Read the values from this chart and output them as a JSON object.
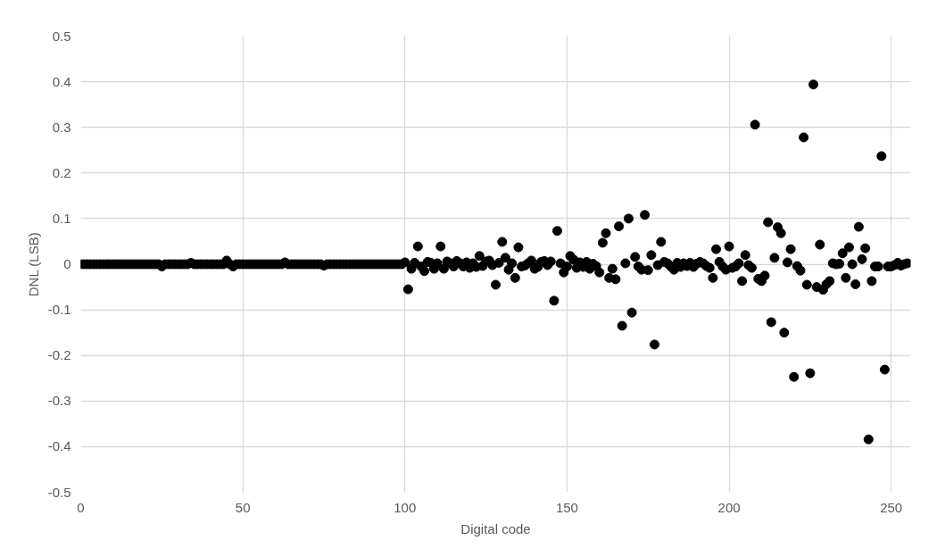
{
  "chart_data": {
    "type": "scatter",
    "xlabel": "Digital code",
    "ylabel": "DNL (LSB)",
    "xlim": [
      0,
      256
    ],
    "ylim": [
      -0.5,
      0.5
    ],
    "xticks": [
      0,
      50,
      100,
      150,
      200,
      250
    ],
    "yticks": [
      -0.5,
      -0.4,
      -0.3,
      -0.2,
      -0.1,
      0,
      0.1,
      0.2,
      0.3,
      0.4,
      0.5
    ],
    "grid": true,
    "marker": "circle",
    "series": [
      {
        "color": "#000000",
        "x": [
          0,
          1,
          2,
          3,
          4,
          5,
          6,
          7,
          8,
          9,
          10,
          11,
          12,
          13,
          14,
          15,
          16,
          17,
          18,
          19,
          20,
          21,
          22,
          23,
          24,
          25,
          26,
          27,
          28,
          29,
          30,
          31,
          32,
          33,
          34,
          35,
          36,
          37,
          38,
          39,
          40,
          41,
          42,
          43,
          44,
          45,
          46,
          47,
          48,
          49,
          50,
          51,
          52,
          53,
          54,
          55,
          56,
          57,
          58,
          59,
          60,
          61,
          62,
          63,
          64,
          65,
          66,
          67,
          68,
          69,
          70,
          71,
          72,
          73,
          74,
          75,
          76,
          77,
          78,
          79,
          80,
          81,
          82,
          83,
          84,
          85,
          86,
          87,
          88,
          89,
          90,
          91,
          92,
          93,
          94,
          95,
          96,
          97,
          98,
          99,
          100,
          101,
          102,
          103,
          104,
          105,
          106,
          107,
          108,
          109,
          110,
          111,
          112,
          113,
          114,
          115,
          116,
          117,
          118,
          119,
          120,
          121,
          122,
          123,
          124,
          125,
          126,
          127,
          128,
          129,
          130,
          131,
          132,
          133,
          134,
          135,
          136,
          137,
          138,
          139,
          140,
          141,
          142,
          143,
          144,
          145,
          146,
          147,
          148,
          149,
          150,
          151,
          152,
          153,
          154,
          155,
          156,
          157,
          158,
          159,
          160,
          161,
          162,
          163,
          164,
          165,
          166,
          167,
          168,
          169,
          170,
          171,
          172,
          173,
          174,
          175,
          176,
          177,
          178,
          179,
          180,
          181,
          182,
          183,
          184,
          185,
          186,
          187,
          188,
          189,
          190,
          191,
          192,
          193,
          194,
          195,
          196,
          197,
          198,
          199,
          200,
          201,
          202,
          203,
          204,
          205,
          206,
          207,
          208,
          209,
          210,
          211,
          212,
          213,
          214,
          215,
          216,
          217,
          218,
          219,
          220,
          221,
          222,
          223,
          224,
          225,
          226,
          227,
          228,
          229,
          230,
          231,
          232,
          233,
          234,
          235,
          236,
          237,
          238,
          239,
          240,
          241,
          242,
          243,
          244,
          245,
          246,
          247,
          248,
          249,
          250,
          251,
          252,
          253,
          254,
          255
        ],
        "values": [
          0,
          0,
          0,
          0,
          0,
          0,
          0,
          0,
          0,
          0,
          0,
          0,
          0,
          0,
          0,
          0,
          0,
          0,
          0,
          0,
          0,
          0,
          0,
          0,
          0,
          -0.005,
          0,
          0,
          0,
          0,
          0,
          0,
          0,
          0,
          0.003,
          0,
          0,
          0,
          0,
          0,
          0,
          0,
          0,
          0,
          0,
          0.008,
          0,
          -0.005,
          0,
          0,
          0,
          0,
          0,
          0,
          0,
          0,
          0,
          0,
          0,
          0,
          0,
          0,
          0,
          0.004,
          0,
          0,
          0,
          0,
          0,
          0,
          0,
          0,
          0,
          0,
          0,
          -0.003,
          0,
          0,
          0,
          0,
          0,
          0,
          0,
          0,
          0,
          0,
          0,
          0,
          0,
          0,
          0,
          0,
          0,
          0,
          0,
          0,
          0,
          0,
          0,
          0,
          0.004,
          -0.055,
          -0.01,
          0.003,
          0.039,
          -0.005,
          -0.015,
          0.005,
          0.003,
          -0.01,
          0.002,
          0.039,
          -0.01,
          0.006,
          0.002,
          -0.005,
          0.007,
          0.002,
          -0.005,
          0.004,
          -0.008,
          0.002,
          -0.006,
          0.018,
          -0.004,
          0.006,
          0.008,
          -0.002,
          -0.045,
          0.003,
          0.049,
          0.014,
          -0.012,
          0.002,
          -0.03,
          0.037,
          -0.005,
          -0.003,
          0.002,
          0.008,
          -0.01,
          -0.006,
          0.005,
          0.007,
          -0.002,
          0.006,
          -0.08,
          0.073,
          0.002,
          -0.018,
          -0.005,
          0.018,
          0.01,
          -0.008,
          0.004,
          -0.006,
          0.005,
          -0.01,
          0.001,
          -0.004,
          -0.018,
          0.047,
          0.068,
          -0.03,
          -0.01,
          -0.033,
          0.083,
          -0.135,
          0.002,
          0.1,
          -0.106,
          0.016,
          -0.005,
          -0.012,
          0.108,
          -0.013,
          0.02,
          -0.176,
          -0.002,
          0.049,
          0.005,
          0.002,
          -0.005,
          -0.012,
          0.003,
          -0.006,
          0.002,
          -0.004,
          0.003,
          -0.006,
          0.001,
          0.005,
          0.002,
          -0.004,
          -0.008,
          -0.03,
          0.033,
          0.005,
          -0.005,
          -0.012,
          0.039,
          -0.008,
          -0.005,
          0.002,
          -0.037,
          0.02,
          -0.002,
          -0.008,
          0.306,
          -0.032,
          -0.037,
          -0.025,
          0.092,
          -0.127,
          0.014,
          0.081,
          0.068,
          -0.15,
          0.004,
          0.033,
          -0.247,
          -0.004,
          -0.014,
          0.278,
          -0.045,
          -0.239,
          0.394,
          -0.05,
          0.043,
          -0.056,
          -0.044,
          -0.037,
          0.002,
          0,
          0.001,
          0.024,
          -0.03,
          0.037,
          0,
          -0.044,
          0.082,
          0.011,
          0.035,
          -0.384,
          -0.037,
          -0.005,
          -0.005,
          0.237,
          -0.231,
          -0.005,
          -0.005,
          -0.002,
          0.003,
          -0.003,
          0,
          0.002
        ]
      }
    ]
  }
}
